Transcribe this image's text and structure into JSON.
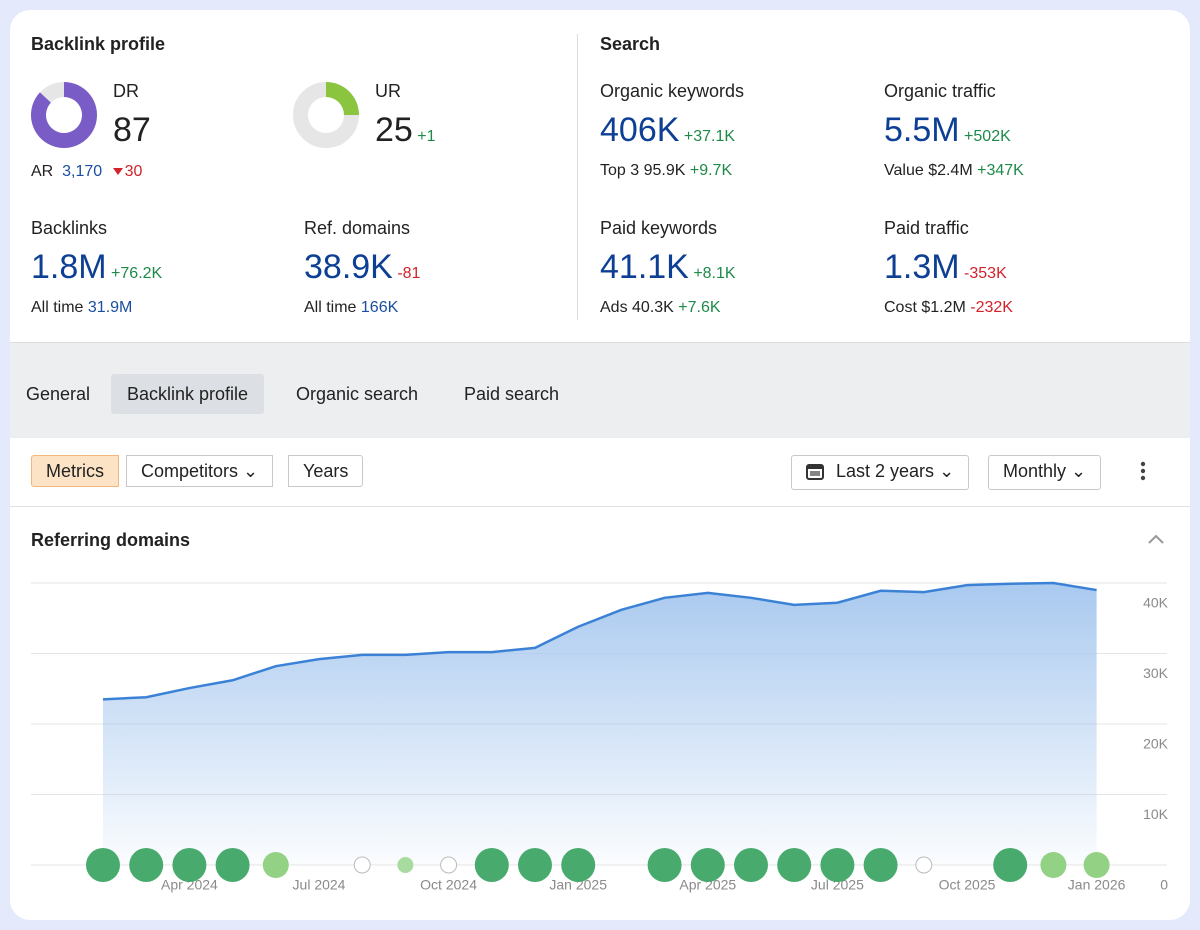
{
  "backlink_profile": {
    "title": "Backlink profile",
    "dr": {
      "label": "DR",
      "value": 87,
      "sub_label": "AR",
      "sub_value": "3,170",
      "sub_change": "30"
    },
    "ur": {
      "label": "UR",
      "value": 25,
      "change": "+1"
    },
    "backlinks": {
      "label": "Backlinks",
      "value": "1.8M",
      "change": "+76.2K",
      "sub_label": "All time",
      "sub_value": "31.9M"
    },
    "ref_domains": {
      "label": "Ref. domains",
      "value": "38.9K",
      "change": "-81",
      "sub_label": "All time",
      "sub_value": "166K"
    }
  },
  "search": {
    "title": "Search",
    "organic_keywords": {
      "label": "Organic keywords",
      "value": "406K",
      "change": "+37.1K",
      "sub_label": "Top 3",
      "sub_value": "95.9K",
      "sub_change": "+9.7K"
    },
    "organic_traffic": {
      "label": "Organic traffic",
      "value": "5.5M",
      "change": "+502K",
      "sub_label": "Value",
      "sub_value": "$2.4M",
      "sub_change": "+347K"
    },
    "paid_keywords": {
      "label": "Paid keywords",
      "value": "41.1K",
      "change": "+8.1K",
      "sub_label": "Ads",
      "sub_value": "40.3K",
      "sub_change": "+7.6K"
    },
    "paid_traffic": {
      "label": "Paid traffic",
      "value": "1.3M",
      "change": "-353K",
      "sub_label": "Cost",
      "sub_value": "$1.2M",
      "sub_change": "-232K"
    }
  },
  "tabs": [
    "General",
    "Backlink profile",
    "Organic search",
    "Paid search"
  ],
  "toolbar": {
    "views": [
      "Metrics",
      "Competitors",
      "Years"
    ],
    "period": "Last 2 years",
    "interval": "Monthly"
  },
  "chart_data": {
    "type": "area",
    "title": "Referring domains",
    "categories": [
      null,
      null,
      "Apr 2024",
      null,
      null,
      "Jul 2024",
      null,
      null,
      "Oct 2024",
      null,
      null,
      "Jan 2025",
      null,
      null,
      "Apr 2025",
      null,
      null,
      "Jul 2025",
      null,
      null,
      "Oct 2025",
      null,
      null,
      "Jan 2026"
    ],
    "values": [
      23500,
      23800,
      25100,
      26200,
      28200,
      29200,
      29800,
      29800,
      30200,
      30200,
      30800,
      33800,
      36200,
      37900,
      38600,
      37900,
      36900,
      37200,
      38900,
      38700,
      39700,
      39900,
      40000,
      39000
    ],
    "color": "#3b82d6",
    "ylim": [
      0,
      40000
    ],
    "yticks": [
      0,
      {
        "value": 10000,
        "label": "10K"
      },
      {
        "value": 20000,
        "label": "20K"
      },
      {
        "value": 30000,
        "label": "30K"
      },
      {
        "value": 40000,
        "label": "40K"
      }
    ],
    "grid": true
  }
}
